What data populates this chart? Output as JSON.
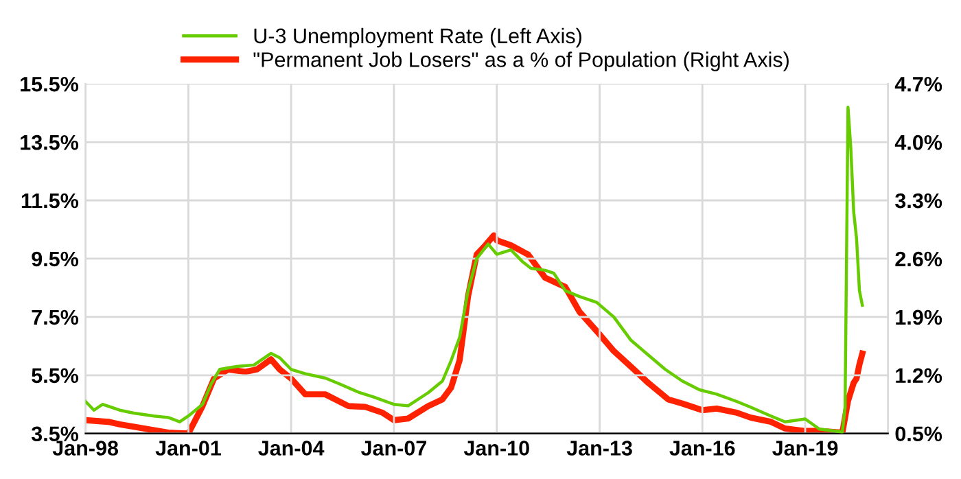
{
  "chart_data": {
    "type": "line",
    "xlim": [
      "1998-01",
      "2021-06"
    ],
    "xticks": [
      {
        "value": "1998-01",
        "label": "Jan-98"
      },
      {
        "value": "2001-01",
        "label": "Jan-01"
      },
      {
        "value": "2004-01",
        "label": "Jan-04"
      },
      {
        "value": "2007-01",
        "label": "Jan-07"
      },
      {
        "value": "2010-01",
        "label": "Jan-10"
      },
      {
        "value": "2013-01",
        "label": "Jan-13"
      },
      {
        "value": "2016-01",
        "label": "Jan-16"
      },
      {
        "value": "2019-01",
        "label": "Jan-19"
      }
    ],
    "ylim": [
      3.5,
      15.5
    ],
    "yticks": [
      {
        "value": 3.5,
        "label": "3.5%"
      },
      {
        "value": 5.5,
        "label": "5.5%"
      },
      {
        "value": 7.5,
        "label": "7.5%"
      },
      {
        "value": 9.5,
        "label": "9.5%"
      },
      {
        "value": 11.5,
        "label": "11.5%"
      },
      {
        "value": 13.5,
        "label": "13.5%"
      },
      {
        "value": 15.5,
        "label": "15.5%"
      }
    ],
    "y2lim": [
      0.5,
      4.7
    ],
    "y2ticks": [
      {
        "value": 0.5,
        "label": "0.5%"
      },
      {
        "value": 1.2,
        "label": "1.2%"
      },
      {
        "value": 1.9,
        "label": "1.9%"
      },
      {
        "value": 2.6,
        "label": "2.6%"
      },
      {
        "value": 3.3,
        "label": "3.3%"
      },
      {
        "value": 4.0,
        "label": "4.0%"
      },
      {
        "value": 4.7,
        "label": "4.7%"
      }
    ],
    "grid": true,
    "legend": "top",
    "series": [
      {
        "name": "U-3 Unemployment Rate (Left Axis)",
        "color": "#66cc00",
        "axis": "y",
        "x": [
          "1998-01",
          "1998-04",
          "1998-07",
          "1999-01",
          "1999-06",
          "2000-01",
          "2000-06",
          "2000-10",
          "2001-01",
          "2001-06",
          "2001-09",
          "2001-12",
          "2002-06",
          "2002-12",
          "2003-06",
          "2003-09",
          "2004-01",
          "2004-06",
          "2005-01",
          "2005-06",
          "2006-01",
          "2006-06",
          "2007-01",
          "2007-06",
          "2008-01",
          "2008-06",
          "2008-09",
          "2008-12",
          "2009-03",
          "2009-06",
          "2009-10",
          "2010-01",
          "2010-06",
          "2010-10",
          "2011-01",
          "2011-06",
          "2011-09",
          "2012-01",
          "2012-06",
          "2012-12",
          "2013-06",
          "2013-12",
          "2014-06",
          "2014-12",
          "2015-06",
          "2015-12",
          "2016-06",
          "2017-01",
          "2017-06",
          "2018-01",
          "2018-06",
          "2019-01",
          "2019-06",
          "2020-02",
          "2020-03",
          "2020-04",
          "2020-05",
          "2020-06",
          "2020-07",
          "2020-08",
          "2020-09"
        ],
        "values": [
          4.6,
          4.3,
          4.5,
          4.3,
          4.2,
          4.1,
          4.05,
          3.9,
          4.1,
          4.5,
          5.2,
          5.7,
          5.8,
          5.85,
          6.25,
          6.1,
          5.7,
          5.55,
          5.4,
          5.2,
          4.9,
          4.75,
          4.5,
          4.45,
          4.9,
          5.3,
          6.0,
          6.8,
          8.4,
          9.5,
          10.0,
          9.65,
          9.8,
          9.4,
          9.17,
          9.1,
          9.0,
          8.4,
          8.2,
          8.0,
          7.5,
          6.7,
          6.2,
          5.7,
          5.3,
          5.0,
          4.85,
          4.6,
          4.4,
          4.1,
          3.9,
          4.0,
          3.65,
          3.55,
          4.4,
          14.7,
          13.3,
          11.1,
          10.2,
          8.4,
          7.9
        ]
      },
      {
        "name": "\"Permanent Job Losers\" as a % of Population (Right Axis)",
        "color": "#ff2200",
        "axis": "y2",
        "x": [
          "1998-01",
          "1998-09",
          "1999-01",
          "1999-06",
          "2000-01",
          "2000-06",
          "2001-01",
          "2001-06",
          "2001-10",
          "2002-03",
          "2002-09",
          "2003-01",
          "2003-06",
          "2003-09",
          "2004-01",
          "2004-06",
          "2005-01",
          "2005-09",
          "2006-03",
          "2006-09",
          "2007-01",
          "2007-06",
          "2008-01",
          "2008-06",
          "2008-09",
          "2008-12",
          "2009-03",
          "2009-06",
          "2009-09",
          "2009-12",
          "2010-01",
          "2010-06",
          "2010-12",
          "2011-06",
          "2012-01",
          "2012-06",
          "2013-01",
          "2013-06",
          "2014-01",
          "2014-06",
          "2015-01",
          "2015-06",
          "2016-01",
          "2016-06",
          "2017-01",
          "2017-06",
          "2018-01",
          "2018-06",
          "2019-01",
          "2019-06",
          "2020-02",
          "2020-04",
          "2020-06",
          "2020-07",
          "2020-08",
          "2020-09"
        ],
        "values": [
          0.66,
          0.64,
          0.61,
          0.58,
          0.54,
          0.51,
          0.5,
          0.83,
          1.16,
          1.27,
          1.24,
          1.27,
          1.39,
          1.27,
          1.16,
          0.97,
          0.97,
          0.83,
          0.82,
          0.75,
          0.66,
          0.68,
          0.83,
          0.91,
          1.05,
          1.38,
          2.15,
          2.65,
          2.76,
          2.88,
          2.82,
          2.76,
          2.65,
          2.37,
          2.26,
          1.96,
          1.69,
          1.49,
          1.27,
          1.11,
          0.91,
          0.86,
          0.78,
          0.8,
          0.75,
          0.69,
          0.64,
          0.56,
          0.53,
          0.53,
          0.51,
          0.89,
          1.11,
          1.16,
          1.33,
          1.46
        ]
      }
    ]
  }
}
